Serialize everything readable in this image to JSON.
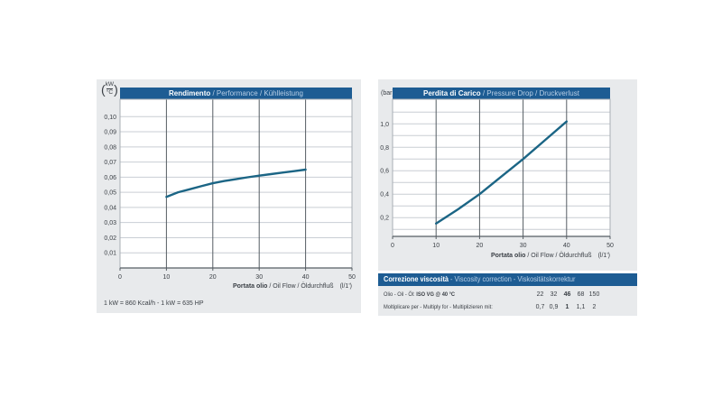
{
  "colors": {
    "accent_blue": "#1d5c93",
    "title_secondary": "#b9cfe6",
    "panel_gray": "#e8eaec",
    "plot_bg": "#ffffff",
    "grid_light": "#c9ced4",
    "grid_dark": "#565d63",
    "plot_border": "#a9afb5",
    "curve": "#1b6585",
    "text": "#3a3f45"
  },
  "chart_data": [
    {
      "type": "line",
      "name": "performance-chart",
      "title_bold": "Rendimento",
      "title_rest": " / Performance / Kühlleistung",
      "y_unit_numerator": "kW",
      "y_unit_denominator": "°C",
      "xlabel_bold": "Portata olio",
      "xlabel_rest": " / Oil Flow / Öldurchfluß",
      "xlabel_unit": "(l/1')",
      "footnote": "1 kW = 860 Kcal/h  -  1 kW = 635 HP",
      "xlim": [
        0,
        50
      ],
      "ylim": [
        0,
        0.1115
      ],
      "xticks": [
        0,
        10,
        20,
        30,
        40,
        50
      ],
      "vgrid": [
        10,
        20,
        30,
        40
      ],
      "ygrid": [
        {
          "v": 0.01,
          "label": "0,01"
        },
        {
          "v": 0.02,
          "label": "0,02"
        },
        {
          "v": 0.03,
          "label": "0,03"
        },
        {
          "v": 0.04,
          "label": "0,04"
        },
        {
          "v": 0.05,
          "label": "0,05"
        },
        {
          "v": 0.06,
          "label": "0,06"
        },
        {
          "v": 0.07,
          "label": "0,07"
        },
        {
          "v": 0.08,
          "label": "0,08"
        },
        {
          "v": 0.09,
          "label": "0,09"
        },
        {
          "v": 0.1,
          "label": "0,10"
        }
      ],
      "series": [
        {
          "name": "cooling-capacity",
          "x": [
            10,
            12.5,
            15,
            17.5,
            20,
            22.5,
            25,
            27.5,
            30,
            32.5,
            35,
            37.5,
            40
          ],
          "y": [
            0.047,
            0.05,
            0.052,
            0.054,
            0.056,
            0.0575,
            0.0587,
            0.0599,
            0.061,
            0.062,
            0.063,
            0.064,
            0.065
          ]
        }
      ]
    },
    {
      "type": "line",
      "name": "pressure-drop-chart",
      "title_bold": "Perdita di Carico",
      "title_rest": " / Pressure Drop / Druckverlust",
      "y_unit": "(bar)",
      "xlabel_bold": "Portata olio",
      "xlabel_rest": " / Oil Flow / Öldurchfluß",
      "xlabel_unit": "(l/1')",
      "xlim": [
        0,
        50
      ],
      "ylim": [
        0.04,
        1.21
      ],
      "xticks": [
        0,
        10,
        20,
        30,
        40,
        50
      ],
      "vgrid": [
        10,
        20,
        30,
        40
      ],
      "ygrid": [
        {
          "v": 0.1,
          "label": ""
        },
        {
          "v": 0.2,
          "label": "0,2"
        },
        {
          "v": 0.3,
          "label": ""
        },
        {
          "v": 0.4,
          "label": "0,4"
        },
        {
          "v": 0.5,
          "label": ""
        },
        {
          "v": 0.6,
          "label": "0,6"
        },
        {
          "v": 0.7,
          "label": ""
        },
        {
          "v": 0.8,
          "label": "0,8"
        },
        {
          "v": 0.9,
          "label": ""
        },
        {
          "v": 1.0,
          "label": "1,0"
        },
        {
          "v": 1.1,
          "label": ""
        }
      ],
      "series": [
        {
          "name": "pressure-drop",
          "x": [
            10,
            15,
            20,
            25,
            30,
            35,
            40
          ],
          "y": [
            0.15,
            0.27,
            0.4,
            0.55,
            0.7,
            0.86,
            1.02
          ]
        }
      ]
    },
    {
      "type": "table",
      "name": "viscosity-correction",
      "title_bold": "Correzione viscosità",
      "title_rest": " - Viscosity correction - Viskositätskorrektur",
      "rows": [
        {
          "label_normal": "Olio - Oil - Öl: ",
          "label_bold": "ISO VG @ 40 °C",
          "values": [
            "22",
            "32",
            "46",
            "68",
            "150"
          ],
          "bold_value_index": 2
        },
        {
          "label_normal": "Moltiplicare per - Multiply for - Multiplizieren mit:",
          "label_bold": "",
          "values": [
            "0,7",
            "0,9",
            "1",
            "1,1",
            "2"
          ],
          "bold_value_index": 2
        }
      ]
    }
  ]
}
